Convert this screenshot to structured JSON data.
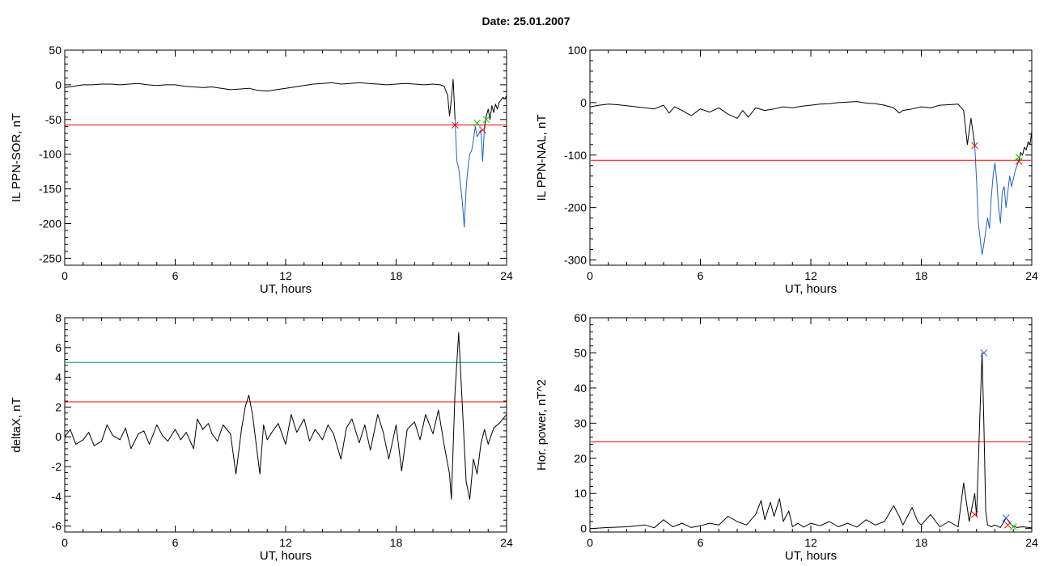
{
  "figure": {
    "title": "Date:  25.01.2007"
  },
  "chart_data": [
    {
      "type": "line",
      "ylabel": "IL PPN-SOR, nT",
      "xlabel": "UT, hours",
      "xlim": [
        0,
        24
      ],
      "ylim": [
        -260,
        50
      ],
      "xticks": [
        "0",
        "6",
        "12",
        "18",
        "24"
      ],
      "yticks": [
        50,
        0,
        -50,
        -100,
        -150,
        -200,
        -250
      ],
      "grid": false,
      "threshold": -58,
      "series": [
        {
          "color": "#000000",
          "x": [
            0,
            0.5,
            1,
            1.5,
            2,
            2.5,
            3,
            3.5,
            4,
            4.5,
            5,
            5.5,
            6,
            6.5,
            7,
            7.5,
            8,
            8.5,
            9,
            9.5,
            10,
            10.5,
            11,
            11.5,
            12,
            12.5,
            13,
            13.5,
            14,
            14.5,
            15,
            15.5,
            16,
            16.5,
            17,
            17.5,
            18,
            18.5,
            19,
            19.5,
            20,
            20.4,
            20.6,
            20.8,
            20.9,
            21.0,
            21.1,
            21.2
          ],
          "y": [
            -4,
            -2,
            0,
            0,
            1,
            1,
            0,
            1,
            2,
            0,
            -1,
            0,
            0,
            -2,
            -3,
            -4,
            -3,
            -5,
            -7,
            -6,
            -5,
            -8,
            -9,
            -7,
            -5,
            -3,
            -1,
            1,
            2,
            3,
            1,
            2,
            3,
            2,
            1,
            0,
            1,
            2,
            1,
            0,
            1,
            0,
            -2,
            -15,
            -45,
            -20,
            8,
            -50
          ]
        },
        {
          "color": "#1f5fd0",
          "x": [
            21.2,
            21.3,
            21.4,
            21.5,
            21.6,
            21.7,
            21.8,
            21.9,
            22.0,
            22.1,
            22.2,
            22.3,
            22.4,
            22.5,
            22.6,
            22.7,
            22.8
          ],
          "y": [
            -50,
            -110,
            -120,
            -145,
            -170,
            -205,
            -150,
            -120,
            -100,
            -95,
            -80,
            -60,
            -75,
            -70,
            -65,
            -110,
            -60
          ]
        },
        {
          "color": "#000000",
          "x": [
            22.8,
            22.9,
            23.0,
            23.1,
            23.2,
            23.3,
            23.4,
            23.5,
            23.6,
            23.7,
            23.8,
            23.9,
            24.0
          ],
          "y": [
            -60,
            -45,
            -35,
            -50,
            -30,
            -40,
            -28,
            -35,
            -25,
            -22,
            -18,
            -20,
            -16
          ]
        }
      ],
      "markers": [
        {
          "x": 21.2,
          "y": -58,
          "color": "#ff0000"
        },
        {
          "x": 22.7,
          "y": -65,
          "color": "#ff0000"
        },
        {
          "x": 22.4,
          "y": -55,
          "color": "#00cc00"
        },
        {
          "x": 22.9,
          "y": -50,
          "color": "#00cc00"
        }
      ]
    },
    {
      "type": "line",
      "ylabel": "IL PPN-NAL, nT",
      "xlabel": "UT, hours",
      "xlim": [
        0,
        24
      ],
      "ylim": [
        -310,
        100
      ],
      "xticks": [
        "0",
        "6",
        "12",
        "18",
        "24"
      ],
      "yticks": [
        100,
        0,
        -100,
        -200,
        -300
      ],
      "grid": false,
      "threshold": -110,
      "series": [
        {
          "color": "#000000",
          "x": [
            0,
            0.5,
            1,
            1.5,
            2,
            2.5,
            3,
            3.5,
            4,
            4.3,
            4.6,
            5,
            5.5,
            6,
            6.5,
            7,
            7.5,
            8,
            8.3,
            8.6,
            9,
            9.5,
            10,
            10.5,
            11,
            11.5,
            12,
            12.5,
            13,
            13.5,
            14,
            14.5,
            15,
            15.5,
            16,
            16.5,
            16.8,
            17,
            17.5,
            18,
            18.5,
            19,
            19.5,
            20,
            20.3,
            20.5,
            20.7,
            20.9
          ],
          "y": [
            -8,
            -5,
            -3,
            -4,
            -6,
            -8,
            -10,
            -12,
            -5,
            -20,
            -8,
            -15,
            -25,
            -12,
            -18,
            -10,
            -22,
            -30,
            -15,
            -28,
            -10,
            -15,
            -12,
            -8,
            -10,
            -7,
            -5,
            -3,
            -2,
            0,
            1,
            2,
            -1,
            -2,
            -5,
            -10,
            -20,
            -15,
            -12,
            -8,
            -10,
            -5,
            -4,
            -3,
            -15,
            -80,
            -30,
            -80
          ]
        },
        {
          "color": "#1f5fd0",
          "x": [
            20.9,
            21.0,
            21.1,
            21.2,
            21.3,
            21.4,
            21.5,
            21.6,
            21.7,
            21.8,
            21.9,
            22.0,
            22.1,
            22.2,
            22.3,
            22.4,
            22.5,
            22.6,
            22.7,
            22.8,
            22.9,
            23.0,
            23.1,
            23.2,
            23.3
          ],
          "y": [
            -80,
            -150,
            -230,
            -260,
            -290,
            -270,
            -245,
            -220,
            -240,
            -180,
            -140,
            -115,
            -150,
            -200,
            -230,
            -170,
            -160,
            -200,
            -170,
            -140,
            -160,
            -145,
            -130,
            -120,
            -110
          ]
        },
        {
          "color": "#000000",
          "x": [
            23.3,
            23.4,
            23.5,
            23.6,
            23.7,
            23.8,
            23.9,
            24.0
          ],
          "y": [
            -110,
            -95,
            -100,
            -85,
            -90,
            -75,
            -80,
            -55
          ]
        }
      ],
      "markers": [
        {
          "x": 20.9,
          "y": -82,
          "color": "#ff0000"
        },
        {
          "x": 23.3,
          "y": -112,
          "color": "#ff0000"
        },
        {
          "x": 23.3,
          "y": -104,
          "color": "#00cc00"
        }
      ]
    },
    {
      "type": "line",
      "ylabel": "deltaX, nT",
      "xlabel": "UT, hours",
      "xlim": [
        0,
        24
      ],
      "ylim": [
        -6.4,
        8
      ],
      "xticks": [
        "0",
        "6",
        "12",
        "18",
        "24"
      ],
      "yticks": [
        8,
        6,
        4,
        2,
        0,
        -2,
        -4,
        -6
      ],
      "grid": false,
      "thresholds": [
        {
          "value": 5.0,
          "color": "#008b8b"
        },
        {
          "value": 2.35,
          "color": "#ff0000"
        }
      ],
      "series": [
        {
          "color": "#000000",
          "x": [
            0,
            0.3,
            0.6,
            1,
            1.3,
            1.6,
            2,
            2.3,
            2.6,
            3,
            3.3,
            3.6,
            4,
            4.3,
            4.6,
            5,
            5.3,
            5.6,
            6,
            6.3,
            6.6,
            7,
            7.2,
            7.5,
            7.8,
            8,
            8.3,
            8.6,
            9,
            9.3,
            9.6,
            9.8,
            10,
            10.2,
            10.4,
            10.6,
            10.8,
            11,
            11.3,
            11.6,
            12,
            12.3,
            12.6,
            13,
            13.3,
            13.6,
            14,
            14.3,
            14.6,
            15,
            15.3,
            15.6,
            16,
            16.3,
            16.6,
            17,
            17.3,
            17.6,
            18,
            18.3,
            18.6,
            19,
            19.3,
            19.6,
            20,
            20.3,
            20.6,
            20.9,
            21.0,
            21.2,
            21.4,
            21.6,
            21.8,
            22.0,
            22.2,
            22.4,
            22.6,
            22.8,
            23.0,
            23.3,
            23.6,
            24.0
          ],
          "y": [
            0,
            0.5,
            -0.5,
            -0.2,
            0.3,
            -0.6,
            -0.3,
            0.8,
            0.1,
            -0.2,
            0.6,
            -0.8,
            0.2,
            0.4,
            -0.5,
            0.8,
            0.1,
            -0.3,
            0.5,
            -0.2,
            0.3,
            -0.8,
            1.2,
            0.5,
            0.9,
            0.2,
            -0.3,
            0.8,
            0.2,
            -2.5,
            0.5,
            2.0,
            2.8,
            1.5,
            -0.5,
            -2.5,
            0.8,
            -0.2,
            0.4,
            0.9,
            -0.5,
            1.5,
            0.3,
            1.2,
            -0.3,
            0.5,
            -0.2,
            0.8,
            0.2,
            -1.5,
            0.6,
            1.2,
            -0.4,
            0.8,
            -0.9,
            1.5,
            0.3,
            -1.5,
            0.8,
            -2.3,
            0.5,
            1.0,
            -0.2,
            1.5,
            0.2,
            1.8,
            -0.5,
            -2.5,
            -4.2,
            3.0,
            7.0,
            2.0,
            -3.0,
            -4.2,
            -1.5,
            -2.5,
            -0.5,
            0.5,
            -0.5,
            0.6,
            0.9,
            1.5
          ]
        }
      ]
    },
    {
      "type": "line",
      "ylabel": "Hor. power, nT^2",
      "xlabel": "UT, hours",
      "xlim": [
        0,
        24
      ],
      "ylim": [
        -1,
        60
      ],
      "xticks": [
        "0",
        "6",
        "12",
        "18",
        "24"
      ],
      "yticks": [
        60,
        50,
        40,
        30,
        20,
        10,
        0
      ],
      "grid": false,
      "threshold": 24.7,
      "series": [
        {
          "color": "#000000",
          "x": [
            0,
            1,
            2,
            3,
            3.5,
            4,
            4.5,
            5,
            5.5,
            6,
            6.5,
            7,
            7.5,
            8,
            8.5,
            9,
            9.3,
            9.5,
            9.8,
            10,
            10.3,
            10.5,
            10.8,
            11,
            11.3,
            11.6,
            12,
            12.5,
            13,
            13.5,
            14,
            14.5,
            15,
            15.5,
            16,
            16.5,
            16.8,
            17,
            17.5,
            17.8,
            18,
            18.5,
            19,
            19.5,
            20,
            20.3,
            20.6,
            20.9,
            21.0,
            21.2,
            21.3,
            21.4,
            21.5,
            21.6,
            21.8,
            22.0,
            22.3,
            22.6,
            22.9,
            23.2,
            23.5,
            24.0
          ],
          "y": [
            0,
            0.3,
            0.5,
            1.0,
            0.2,
            2.5,
            0.5,
            1.5,
            0.3,
            0.8,
            1.5,
            1.0,
            3.5,
            2.0,
            1.0,
            4.0,
            8.0,
            2.5,
            7.5,
            3.5,
            8.5,
            2.0,
            5.0,
            0.5,
            1.5,
            0.4,
            1.5,
            0.8,
            2.0,
            0.5,
            1.5,
            0.4,
            2.5,
            1.0,
            2.0,
            6.5,
            3.5,
            1.0,
            6.0,
            2.0,
            1.0,
            4.0,
            0.5,
            2.0,
            0.5,
            13.0,
            2.0,
            10.0,
            3.5,
            35.0,
            50.0,
            30.0,
            5.0,
            1.0,
            0.5,
            1.0,
            0.3,
            3.0,
            1.0,
            0.3,
            0.5,
            0.2
          ]
        }
      ],
      "markers": [
        {
          "x": 21.4,
          "y": 50.0,
          "color": "#1f5fd0"
        },
        {
          "x": 20.9,
          "y": 4.0,
          "color": "#ff0000"
        },
        {
          "x": 22.6,
          "y": 3.0,
          "color": "#1f5fd0"
        },
        {
          "x": 22.7,
          "y": 1.0,
          "color": "#ff0000"
        },
        {
          "x": 23.0,
          "y": 0.5,
          "color": "#00cc00"
        }
      ]
    }
  ]
}
